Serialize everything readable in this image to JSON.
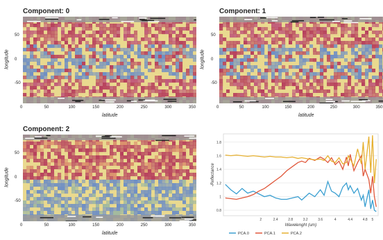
{
  "panels": [
    {
      "title": "Component: 0",
      "xlabel": "latitude",
      "ylabel": "longitude"
    },
    {
      "title": "Component: 1",
      "xlabel": "latitude",
      "ylabel": "longitude"
    },
    {
      "title": "Component: 2",
      "xlabel": "latitude",
      "ylabel": "longitude"
    }
  ],
  "map_axes": {
    "xticks": [
      "0",
      "50",
      "100",
      "150",
      "200",
      "250",
      "300",
      "350"
    ],
    "yticks": [
      "50",
      "0",
      "-50"
    ],
    "xlim": [
      0,
      360
    ],
    "ylim": [
      -90,
      90
    ]
  },
  "colors": {
    "warm": "#b7415d",
    "mid": "#e9d98f",
    "cool": "#6f8fc4",
    "pca0": "#3a9fd1",
    "pca1": "#e0573a",
    "pca2": "#e6b030"
  },
  "chart_data": {
    "type": "line",
    "xlabel": "Wavelenght (um)",
    "ylabel": "-Reflectance",
    "xlim": [
      1.0,
      5.15
    ],
    "ylim": [
      0.72,
      1.92
    ],
    "xticks": [
      2,
      2.4,
      2.8,
      3.2,
      3.6,
      4,
      4.4,
      4.8,
      5
    ],
    "yticks": [
      0.8,
      1,
      1.2,
      1.4,
      1.6,
      1.8
    ],
    "x": [
      1.05,
      1.2,
      1.35,
      1.5,
      1.65,
      1.8,
      1.95,
      2.1,
      2.25,
      2.4,
      2.55,
      2.7,
      2.85,
      3.0,
      3.1,
      3.2,
      3.3,
      3.45,
      3.6,
      3.7,
      3.8,
      3.9,
      4.0,
      4.1,
      4.2,
      4.3,
      4.35,
      4.4,
      4.5,
      4.6,
      4.7,
      4.75,
      4.8,
      4.9,
      4.95,
      5.0,
      5.05,
      5.1
    ],
    "series": [
      {
        "name": "PCA.0",
        "values": [
          1.18,
          1.1,
          1.04,
          1.12,
          1.05,
          1.08,
          1.04,
          1.0,
          1.02,
          0.98,
          0.96,
          0.96,
          0.98,
          1.0,
          0.95,
          1.0,
          1.05,
          1.0,
          1.1,
          1.02,
          1.22,
          1.08,
          1.05,
          1.0,
          1.14,
          1.2,
          1.1,
          1.16,
          1.05,
          1.12,
          0.95,
          1.02,
          0.85,
          1.1,
          0.82,
          0.95,
          0.8,
          0.78
        ]
      },
      {
        "name": "PCA.1",
        "values": [
          0.98,
          0.97,
          0.96,
          0.98,
          1.0,
          1.03,
          1.08,
          1.12,
          1.18,
          1.24,
          1.3,
          1.38,
          1.44,
          1.5,
          1.52,
          1.5,
          1.56,
          1.53,
          1.58,
          1.55,
          1.5,
          1.57,
          1.47,
          1.52,
          1.4,
          1.58,
          1.45,
          1.62,
          1.38,
          1.5,
          1.6,
          1.3,
          1.4,
          1.25,
          1.05,
          1.3,
          1.0,
          0.85
        ]
      },
      {
        "name": "PCA.2",
        "values": [
          1.61,
          1.6,
          1.61,
          1.6,
          1.59,
          1.6,
          1.59,
          1.58,
          1.59,
          1.58,
          1.58,
          1.57,
          1.58,
          1.56,
          1.57,
          1.56,
          1.55,
          1.54,
          1.55,
          1.53,
          1.6,
          1.52,
          1.5,
          1.57,
          1.48,
          1.5,
          1.6,
          1.55,
          1.45,
          1.7,
          1.48,
          1.8,
          1.4,
          1.88,
          1.35,
          1.9,
          1.2,
          1.55
        ]
      }
    ],
    "legend_position": "bottom"
  }
}
